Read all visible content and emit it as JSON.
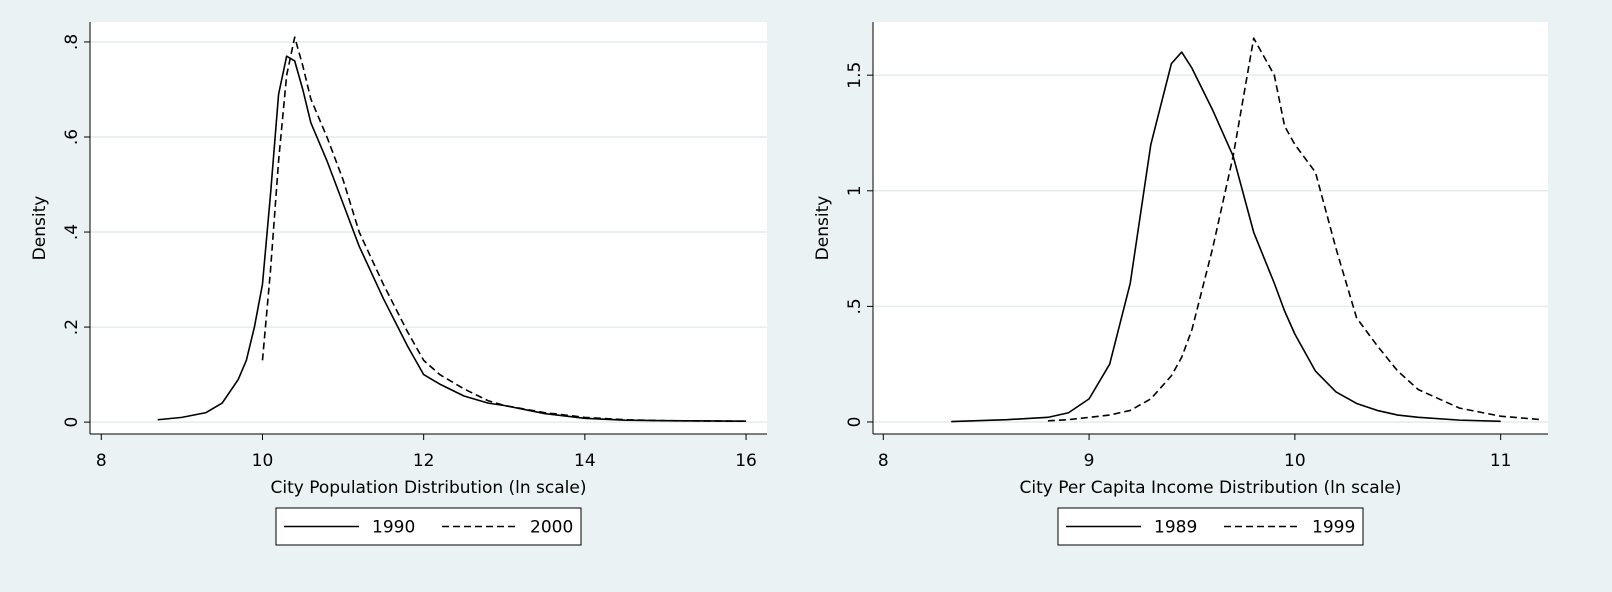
{
  "chart_data": [
    {
      "type": "line",
      "xlabel": "City Population Distribution (ln scale)",
      "ylabel": "Density",
      "x": [
        8.7,
        9.0,
        9.3,
        9.5,
        9.7,
        9.8,
        9.9,
        10.0,
        10.1,
        10.2,
        10.3,
        10.4,
        10.5,
        10.6,
        10.8,
        11.0,
        11.2,
        11.5,
        11.8,
        12.0,
        12.2,
        12.5,
        12.8,
        13.0,
        13.5,
        14,
        14.5,
        15,
        16
      ],
      "series": [
        {
          "name": "1990",
          "color": "#000000",
          "dash": "solid",
          "values": [
            0.005,
            0.01,
            0.02,
            0.04,
            0.09,
            0.13,
            0.2,
            0.29,
            0.48,
            0.69,
            0.77,
            0.76,
            0.7,
            0.63,
            0.55,
            0.46,
            0.37,
            0.26,
            0.16,
            0.1,
            0.08,
            0.055,
            0.04,
            0.035,
            0.018,
            0.008,
            0.004,
            0.003,
            0.002
          ]
        },
        {
          "name": "2000",
          "color": "#000000",
          "dash": "dashed",
          "values": [
            null,
            null,
            null,
            null,
            null,
            null,
            null,
            0.13,
            0.32,
            0.55,
            0.73,
            0.81,
            0.75,
            0.68,
            0.6,
            0.51,
            0.4,
            0.29,
            0.19,
            0.13,
            0.1,
            0.07,
            0.045,
            0.035,
            0.02,
            0.01,
            0.005,
            0.003,
            0.002
          ]
        }
      ],
      "xlim": [
        7.86,
        16.26
      ],
      "xticks": [
        8,
        10,
        12,
        14,
        16
      ],
      "ylim": [
        -0.025,
        0.842
      ],
      "yticks": [
        0,
        {
          "value": 0.2,
          "label": ".2"
        },
        {
          "value": 0.4,
          "label": ".4"
        },
        {
          "value": 0.6,
          "label": ".6"
        },
        {
          "value": 0.8,
          "label": ".8"
        }
      ],
      "grid": true,
      "legend": "bottom"
    },
    {
      "type": "line",
      "xlabel": "City Per Capita Income Distribution (ln scale)",
      "ylabel": "Density",
      "x": [
        8.33,
        8.6,
        8.8,
        8.9,
        9.0,
        9.1,
        9.2,
        9.3,
        9.4,
        9.45,
        9.5,
        9.6,
        9.7,
        9.8,
        9.9,
        9.95,
        10.0,
        10.1,
        10.2,
        10.3,
        10.4,
        10.5,
        10.6,
        10.8,
        11.0,
        11.2
      ],
      "series": [
        {
          "name": "1989",
          "color": "#000000",
          "dash": "solid",
          "values": [
            0.002,
            0.01,
            0.02,
            0.04,
            0.1,
            0.25,
            0.6,
            1.2,
            1.55,
            1.6,
            1.53,
            1.35,
            1.15,
            0.82,
            0.6,
            0.48,
            0.38,
            0.22,
            0.13,
            0.08,
            0.05,
            0.03,
            0.02,
            0.008,
            0.003,
            null
          ]
        },
        {
          "name": "1999",
          "color": "#000000",
          "dash": "dashed",
          "values": [
            null,
            null,
            0.005,
            0.01,
            0.02,
            0.03,
            0.05,
            0.1,
            0.2,
            0.28,
            0.4,
            0.75,
            1.15,
            1.66,
            1.5,
            1.28,
            1.2,
            1.08,
            0.75,
            0.45,
            0.33,
            0.22,
            0.14,
            0.06,
            0.025,
            0.01
          ]
        }
      ],
      "xlim": [
        7.95,
        11.23
      ],
      "xticks": [
        8,
        9,
        10,
        11
      ],
      "ylim": [
        -0.052,
        1.73
      ],
      "yticks": [
        0,
        {
          "value": 0.5,
          "label": ".5"
        },
        1,
        1.5
      ],
      "grid": true,
      "legend": "bottom"
    }
  ]
}
